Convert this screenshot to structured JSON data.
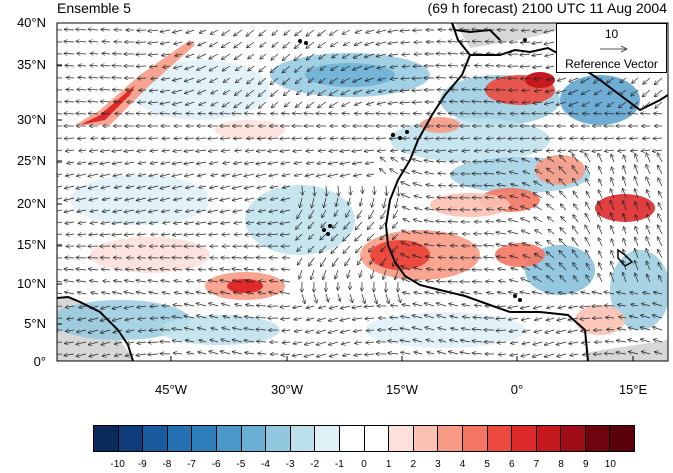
{
  "header": {
    "left_title": "Ensemble 5",
    "right_title": "(69 h forecast) 2100 UTC 11 Aug 2004"
  },
  "map": {
    "lat_labels": [
      "40°N",
      "35°N",
      "30°N",
      "25°N",
      "20°N",
      "15°N",
      "10°N",
      "5°N",
      "0°"
    ],
    "lon_labels": [
      "45°W",
      "30°W",
      "15°W",
      "0°",
      "15°E"
    ],
    "land_mask_color": "#d7d7d7",
    "coastline_color": "#000000",
    "vector_color": "#222222"
  },
  "reference_vector": {
    "magnitude": "10",
    "label": "Reference Vector"
  },
  "colorbar": {
    "labels": [
      "-10",
      "-9",
      "-8",
      "-7",
      "-6",
      "-5",
      "-4",
      "-3",
      "-2",
      "-1",
      "0",
      "1",
      "2",
      "3",
      "4",
      "5",
      "6",
      "7",
      "8",
      "9",
      "10"
    ],
    "colors": [
      "#0a2a5a",
      "#0f3c7a",
      "#1a5a9e",
      "#2371b3",
      "#2f7fbd",
      "#4b98c9",
      "#6aafd4",
      "#92c8df",
      "#bce0eb",
      "#dff1f7",
      "#ffffff",
      "#ffffff",
      "#fde0dc",
      "#fbc1b3",
      "#f89b86",
      "#f37562",
      "#ec4a3e",
      "#de2a2a",
      "#c5191f",
      "#9f0d17",
      "#6e0410",
      "#5a000c"
    ]
  }
}
